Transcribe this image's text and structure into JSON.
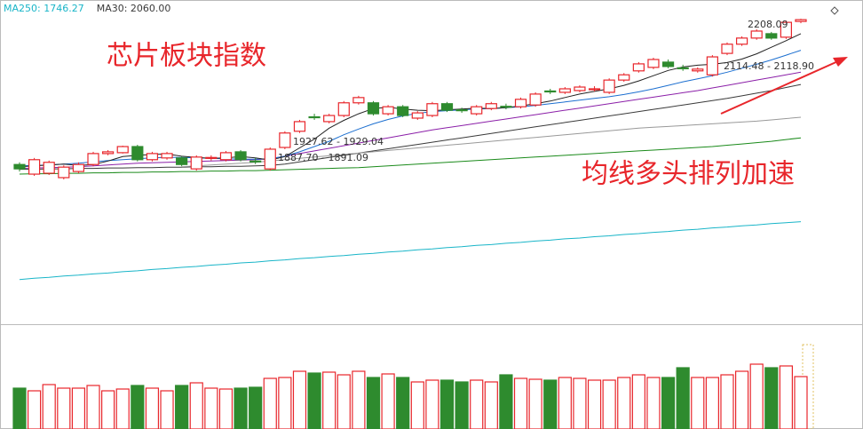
{
  "chart_data": {
    "type": "candlestick",
    "title": "芯片板块指数",
    "annotation": "均线多头排列加速",
    "price_labels": [
      "2208.09",
      "1927.62 - 1929.04",
      "1887.70 - 1891.09",
      "2114.48 - 2118.90"
    ],
    "up_color": "#e8262b",
    "down_color": "#2e8b2e",
    "ylim": [
      1512,
      2253
    ],
    "candles": {
      "open": [
        1877,
        1855,
        1857,
        1847,
        1861,
        1877,
        1902,
        1904,
        1918,
        1888,
        1892,
        1892,
        1867,
        1892,
        1888,
        1906,
        1885,
        1867,
        1916,
        1953,
        1986,
        1975,
        1989,
        2018,
        2018,
        1993,
        2009,
        1983,
        1989,
        2016,
        2002,
        1993,
        2005,
        2010,
        2009,
        2013,
        2045,
        2042,
        2046,
        2049,
        2042,
        2070,
        2091,
        2099,
        2111,
        2098,
        2091,
        2082,
        2131,
        2152,
        2166,
        2176,
        2168,
        2204
      ],
      "high": [
        1882,
        1892,
        1886,
        1875,
        1882,
        1906,
        1910,
        1920,
        1922,
        1906,
        1906,
        1896,
        1898,
        1898,
        1908,
        1910,
        1892,
        1916,
        1953,
        1979,
        1993,
        1993,
        2022,
        2034,
        2022,
        2013,
        2013,
        1999,
        2020,
        2020,
        2007,
        2013,
        2020,
        2016,
        2030,
        2042,
        2050,
        2054,
        2058,
        2056,
        2074,
        2086,
        2111,
        2121,
        2117,
        2105,
        2099,
        2127,
        2156,
        2170,
        2186,
        2180,
        2206,
        2210
      ],
      "low": [
        1861,
        1851,
        1853,
        1843,
        1857,
        1873,
        1898,
        1902,
        1884,
        1884,
        1888,
        1873,
        1863,
        1886,
        1884,
        1884,
        1878,
        1863,
        1912,
        1949,
        1979,
        1971,
        1985,
        2014,
        1989,
        1989,
        1985,
        1979,
        1985,
        1997,
        1995,
        1989,
        2001,
        2003,
        2005,
        2009,
        2038,
        2038,
        2042,
        2044,
        2038,
        2066,
        2087,
        2095,
        2097,
        2091,
        2087,
        2078,
        2127,
        2148,
        2162,
        2162,
        2164,
        2200
      ],
      "close": [
        1867,
        1888,
        1882,
        1871,
        1877,
        1902,
        1906,
        1918,
        1888,
        1902,
        1902,
        1877,
        1894,
        1893,
        1904,
        1888,
        1884,
        1912,
        1949,
        1975,
        1985,
        1989,
        2018,
        2030,
        1993,
        2009,
        1989,
        1995,
        2016,
        2001,
        2001,
        2009,
        2016,
        2009,
        2026,
        2038,
        2044,
        2050,
        2054,
        2050,
        2070,
        2082,
        2107,
        2117,
        2101,
        2097,
        2095,
        2123,
        2152,
        2166,
        2182,
        2166,
        2202,
        2208
      ]
    },
    "series": [
      {
        "name": "MA250: 1746.27",
        "color": "#19b5c8",
        "values": [
          1614,
          1617,
          1619,
          1622,
          1624,
          1627,
          1629,
          1632,
          1634,
          1637,
          1639,
          1642,
          1644,
          1647,
          1649,
          1652,
          1654,
          1657,
          1659,
          1662,
          1664,
          1667,
          1669,
          1672,
          1674,
          1677,
          1679,
          1682,
          1684,
          1687,
          1689,
          1692,
          1694,
          1697,
          1699,
          1702,
          1704,
          1707,
          1709,
          1712,
          1714,
          1717,
          1719,
          1722,
          1724,
          1727,
          1729,
          1732,
          1734,
          1737,
          1739,
          1742,
          1744,
          1746.27
        ]
      },
      {
        "name": "MA30: 2060.00",
        "color": "#3a3a3a",
        "values": [
          1866,
          1866,
          1867,
          1867,
          1868,
          1868,
          1869,
          1869,
          1870,
          1870,
          1871,
          1871,
          1872,
          1872,
          1873,
          1873,
          1874,
          1875,
          1878,
          1883,
          1888,
          1893,
          1898,
          1903,
          1908,
          1913,
          1918,
          1923,
          1928,
          1933,
          1938,
          1943,
          1948,
          1953,
          1958,
          1963,
          1968,
          1973,
          1978,
          1983,
          1988,
          1993,
          1998,
          2003,
          2008,
          2013,
          2018,
          2023,
          2028,
          2034,
          2040,
          2046,
          2053,
          2060
        ]
      },
      {
        "color": "#1a8a1a",
        "values": [
          1855,
          1856,
          1856,
          1857,
          1857,
          1858,
          1858,
          1859,
          1859,
          1860,
          1860,
          1861,
          1861,
          1862,
          1862,
          1863,
          1863,
          1864,
          1865,
          1866,
          1867,
          1868,
          1869,
          1870,
          1872,
          1874,
          1876,
          1878,
          1880,
          1882,
          1884,
          1886,
          1888,
          1890,
          1892,
          1894,
          1896,
          1898,
          1900,
          1902,
          1904,
          1906,
          1908,
          1910,
          1912,
          1914,
          1916,
          1918,
          1921,
          1924,
          1927,
          1930,
          1934,
          1938
        ]
      },
      {
        "color": "#999999",
        "values": [
          null,
          null,
          null,
          null,
          null,
          null,
          null,
          null,
          null,
          null,
          null,
          1872,
          1874,
          1876,
          1878,
          1880,
          1882,
          1885,
          1888,
          1891,
          1894,
          1897,
          1900,
          1903,
          1906,
          1909,
          1912,
          1915,
          1918,
          1921,
          1924,
          1927,
          1930,
          1933,
          1936,
          1939,
          1942,
          1945,
          1948,
          1951,
          1954,
          1957,
          1960,
          1962,
          1964,
          1966,
          1968,
          1970,
          1972,
          1974,
          1976,
          1979,
          1982,
          1985
        ]
      },
      {
        "color": "#8b1fa8",
        "values": [
          1868,
          1869,
          1870,
          1871,
          1872,
          1874,
          1876,
          1878,
          1880,
          1881,
          1882,
          1883,
          1884,
          1885,
          1886,
          1887,
          1888,
          1890,
          1896,
          1902,
          1908,
          1914,
          1920,
          1926,
          1932,
          1938,
          1944,
          1950,
          1956,
          1961,
          1966,
          1971,
          1976,
          1981,
          1986,
          1991,
          1996,
          2001,
          2006,
          2011,
          2016,
          2021,
          2026,
          2031,
          2036,
          2041,
          2046,
          2052,
          2058,
          2064,
          2070,
          2076,
          2082,
          2088
        ]
      },
      {
        "color": "#1c6fd0",
        "values": [
          1874,
          1875,
          1876,
          1878,
          1880,
          1883,
          1886,
          1888,
          1890,
          1892,
          1893,
          1893,
          1892,
          1891,
          1890,
          1889,
          1889,
          1890,
          1896,
          1906,
          1918,
          1930,
          1945,
          1958,
          1970,
          1980,
          1988,
          1994,
          1998,
          2000,
          2002,
          2004,
          2005,
          2007,
          2009,
          2012,
          2016,
          2020,
          2024,
          2028,
          2032,
          2037,
          2043,
          2050,
          2058,
          2066,
          2073,
          2080,
          2088,
          2097,
          2106,
          2116,
          2127,
          2138
        ]
      },
      {
        "color": "#222222",
        "values": [
          1872,
          1874,
          1876,
          1878,
          1875,
          1877,
          1885,
          1895,
          1898,
          1900,
          1901,
          1896,
          1893,
          1891,
          1892,
          1895,
          1892,
          1887,
          1895,
          1915,
          1935,
          1960,
          1978,
          1993,
          2005,
          2008,
          2004,
          2001,
          2000,
          2002,
          2004,
          2006,
          2005,
          2007,
          2011,
          2016,
          2022,
          2030,
          2038,
          2044,
          2050,
          2058,
          2068,
          2080,
          2092,
          2100,
          2104,
          2106,
          2110,
          2118,
          2130,
          2145,
          2160,
          2176
        ]
      }
    ],
    "volume": {
      "ylim": [
        0,
        118
      ],
      "values": [
        46,
        43,
        50,
        46,
        46,
        49,
        43,
        45,
        49,
        46,
        43,
        49,
        52,
        46,
        45,
        46,
        47,
        57,
        58,
        65,
        63,
        64,
        61,
        65,
        58,
        62,
        58,
        53,
        55,
        55,
        53,
        55,
        53,
        61,
        57,
        56,
        55,
        58,
        57,
        55,
        55,
        58,
        61,
        58,
        58,
        69,
        58,
        58,
        61,
        65,
        73,
        69,
        71,
        59
      ]
    }
  }
}
